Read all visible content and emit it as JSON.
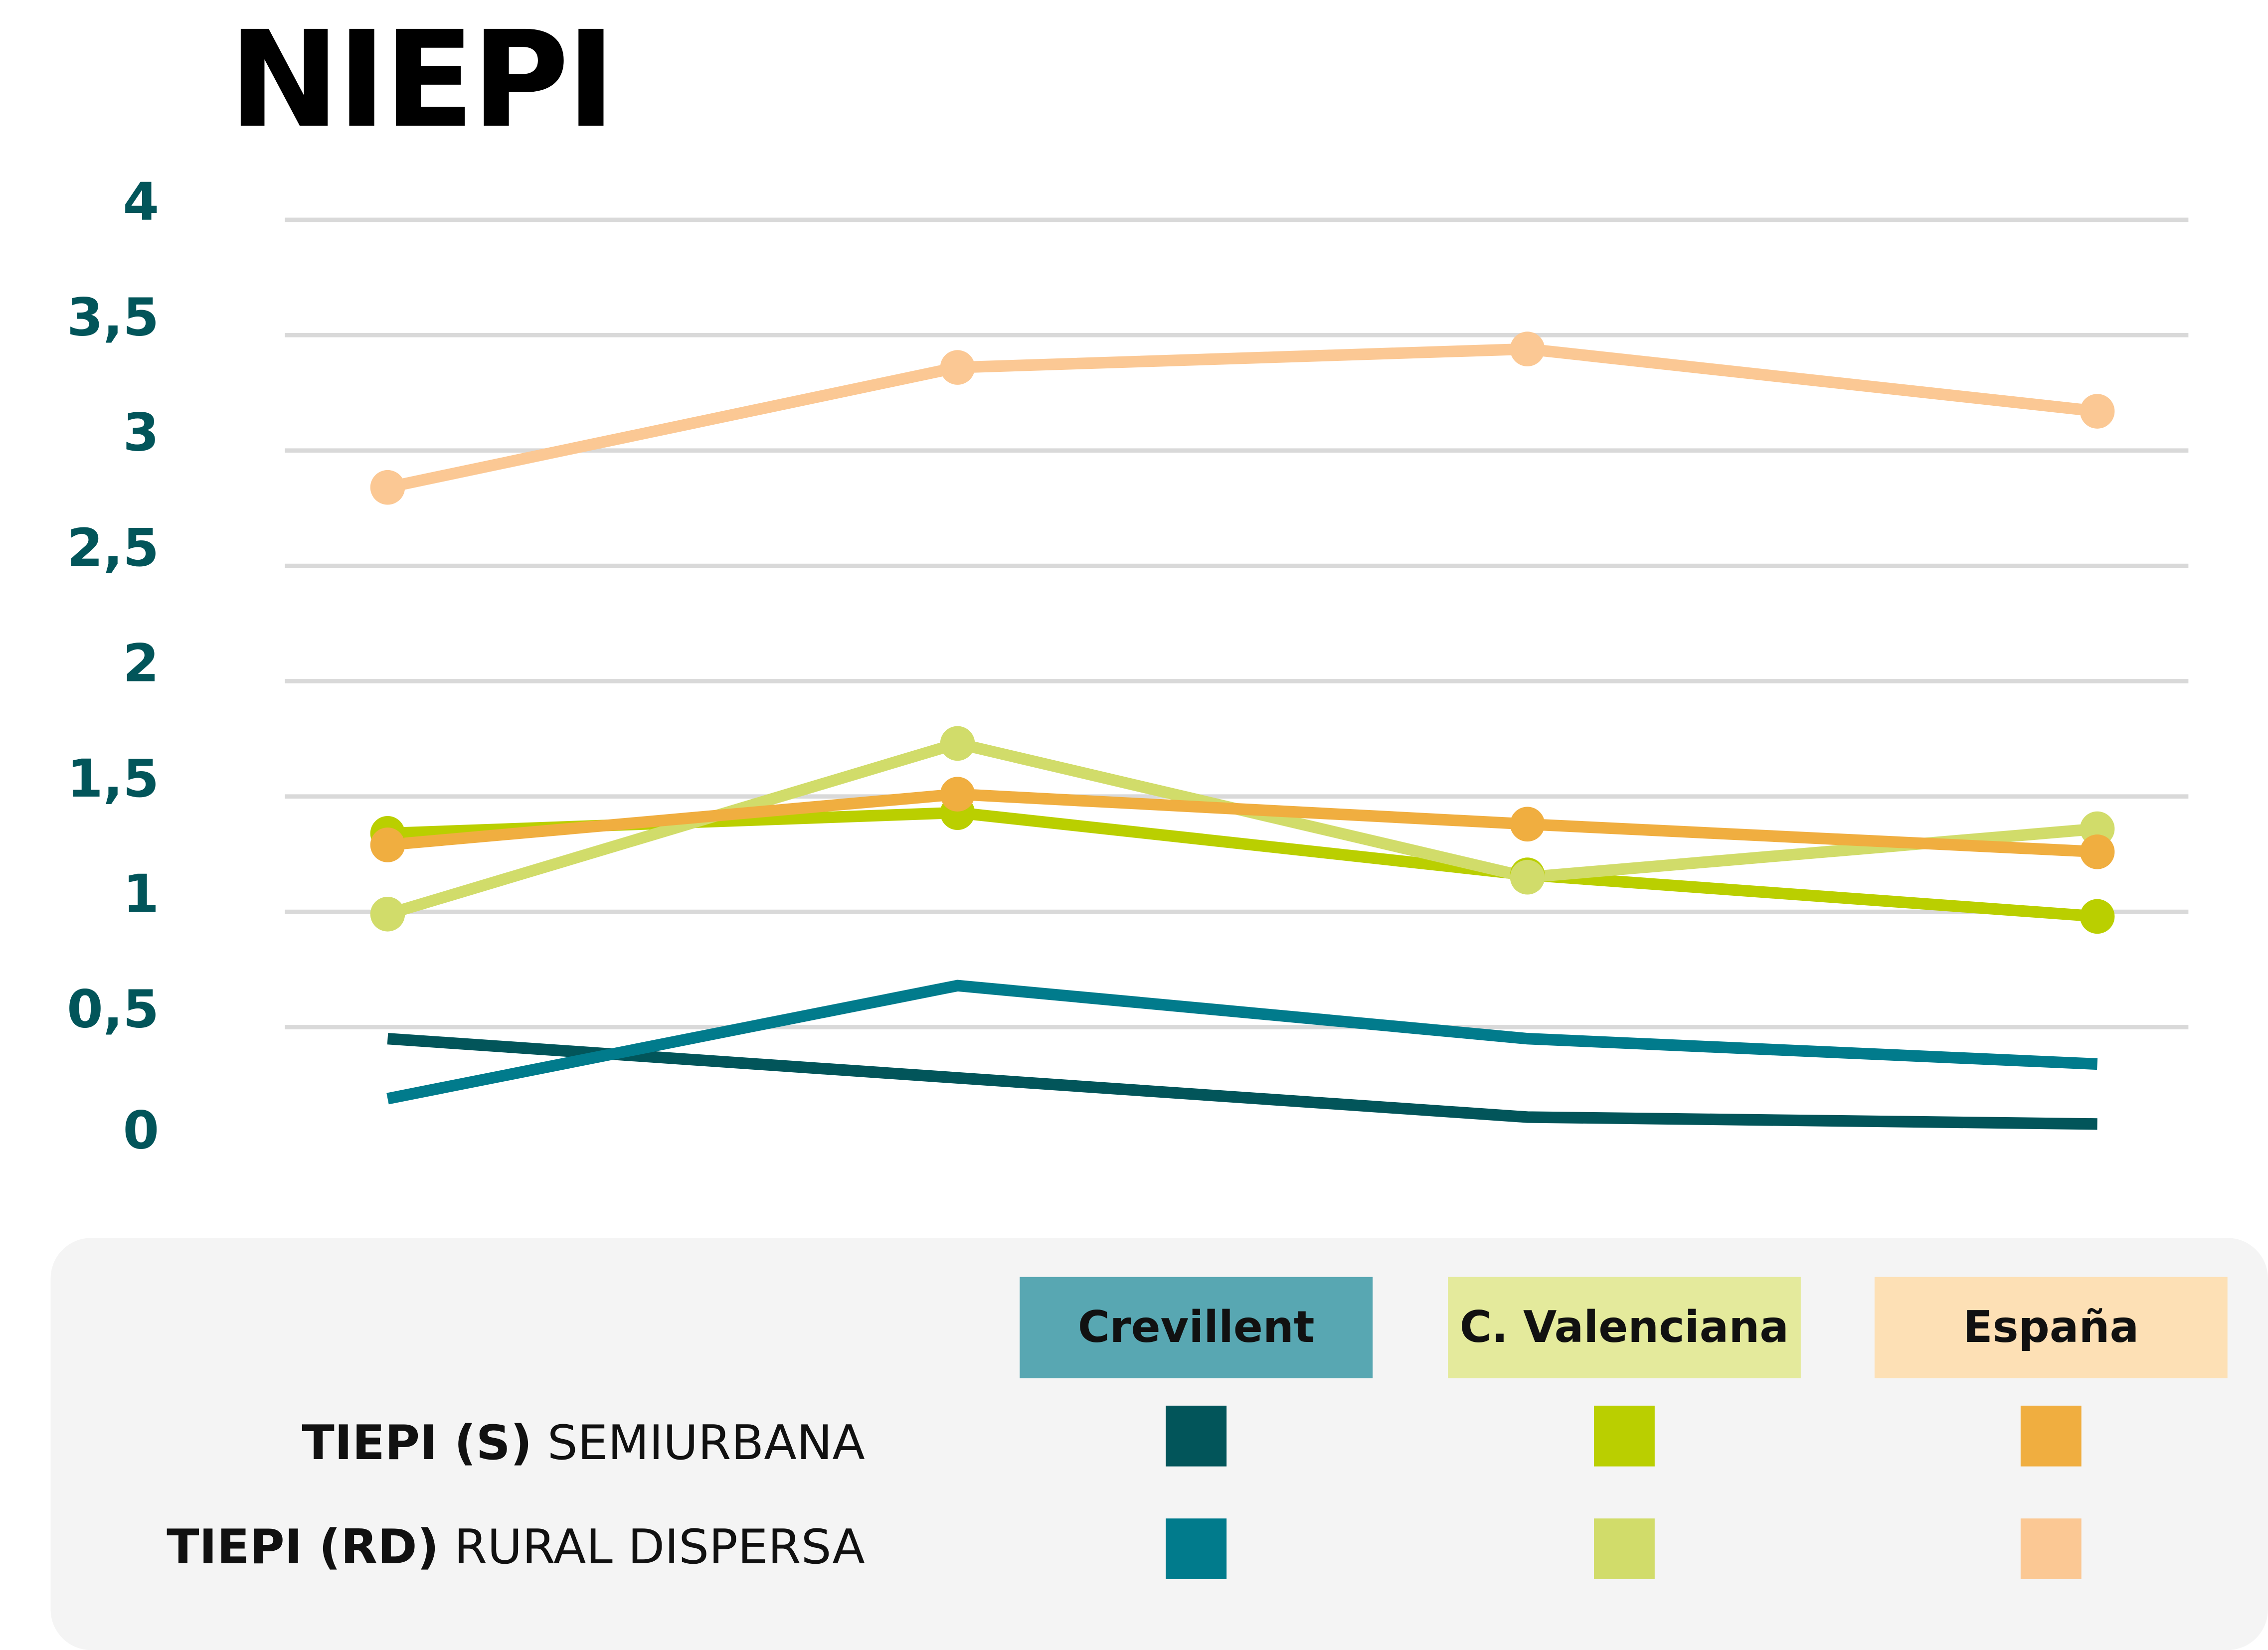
{
  "chart_data": {
    "type": "line",
    "title": "NIEPI",
    "xlabel": "",
    "ylabel": "",
    "x": [
      1,
      2,
      3,
      4
    ],
    "ylim": [
      0,
      4
    ],
    "yticks": [
      "0",
      "0,5",
      "1",
      "1,5",
      "2",
      "2,5",
      "3",
      "3,5",
      "4"
    ],
    "ytick_values": [
      0,
      0.5,
      1,
      1.5,
      2,
      2.5,
      3,
      3.5,
      4
    ],
    "grid": true,
    "legend_position": "bottom",
    "series": [
      {
        "name": "Crevillent TIEPI (S) Semiurbana",
        "color": "#02555a",
        "markers": false,
        "values": [
          0.45,
          0.28,
          0.11,
          0.08
        ]
      },
      {
        "name": "Crevillent TIEPI (RD) Rural Dispersa",
        "color": "#017b8c",
        "markers": false,
        "values": [
          0.19,
          0.68,
          0.45,
          0.34
        ]
      },
      {
        "name": "C. Valenciana TIEPI (S) Semiurbana",
        "color": "#bacf00",
        "markers": true,
        "values": [
          1.34,
          1.43,
          1.16,
          0.98
        ]
      },
      {
        "name": "C. Valenciana TIEPI (RD) Rural Dispersa",
        "color": "#d1dc6a",
        "markers": true,
        "values": [
          0.99,
          1.73,
          1.15,
          1.36
        ]
      },
      {
        "name": "España TIEPI (S) Semiurbana",
        "color": "#f0ae40",
        "markers": true,
        "values": [
          1.29,
          1.51,
          1.38,
          1.26
        ]
      },
      {
        "name": "España TIEPI (RD) Rural Dispersa",
        "color": "#fbc894",
        "markers": true,
        "values": [
          2.84,
          3.36,
          3.44,
          3.17
        ]
      }
    ]
  },
  "legend": {
    "columns": [
      {
        "label": "Crevillent",
        "bg": "#58a7b2"
      },
      {
        "label": "C. Valenciana",
        "bg": "#e4ea9c"
      },
      {
        "label": "España",
        "bg": "#fde0b5"
      }
    ],
    "rows": [
      {
        "bold": "TIEPI (S)",
        "rest": " SEMIURBANA",
        "colors": [
          "#02555a",
          "#bacf00",
          "#f0ae40"
        ]
      },
      {
        "bold": "TIEPI (RD)",
        "rest": " RURAL DISPERSA",
        "colors": [
          "#017b8c",
          "#d1dc6a",
          "#fbc894"
        ]
      }
    ]
  }
}
